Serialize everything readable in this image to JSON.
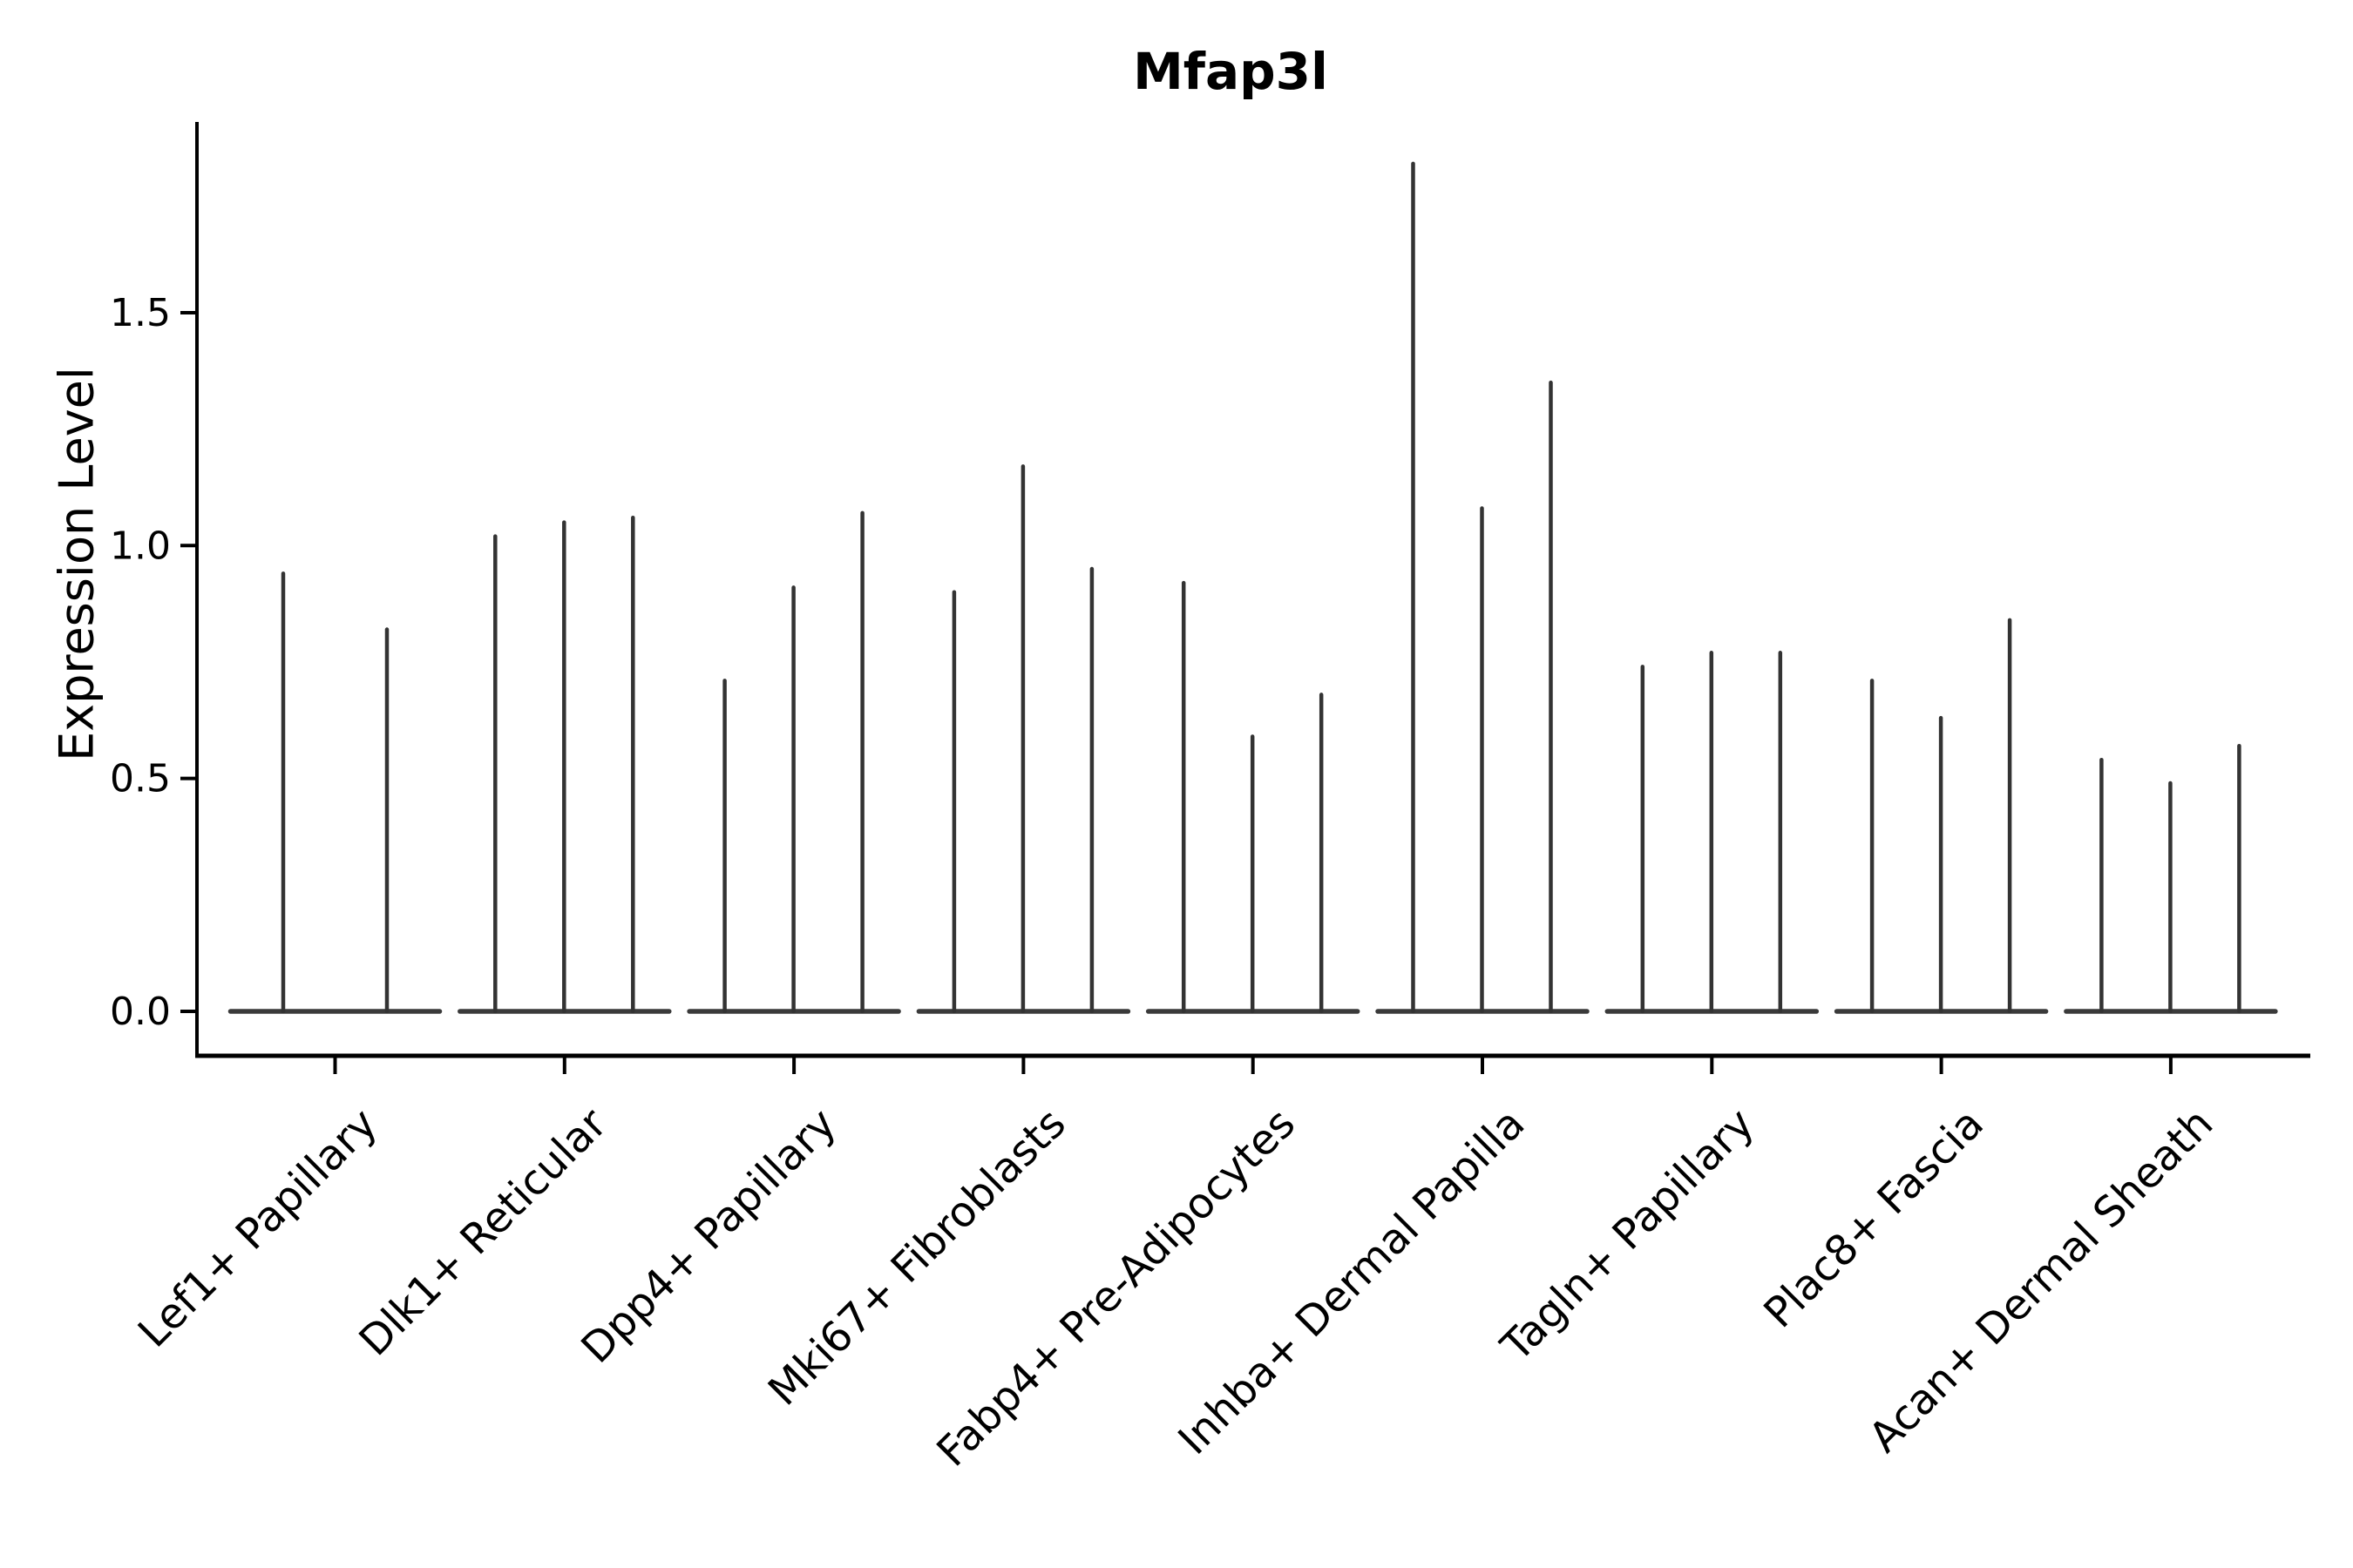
{
  "title": "Mfap3l",
  "y_axis": {
    "label": "Expression Level",
    "tick_labels": [
      "0.0",
      "0.5",
      "1.0",
      "1.5"
    ],
    "tick_values": [
      0.0,
      0.5,
      1.0,
      1.5
    ]
  },
  "chart_data": {
    "type": "violin",
    "title": "Mfap3l",
    "xlabel": "",
    "ylabel": "Expression Level",
    "ylim": [
      -0.11,
      1.91
    ],
    "yticks": [
      0.0,
      0.5,
      1.0,
      1.5
    ],
    "grid": false,
    "legend": "none",
    "description": "Thin spike-shaped violins of expression level per fibroblast cluster; each violin's mass sits at 0 with a narrow spike up to its maximum value.",
    "categories": [
      "Lef1+ Papillary",
      "Dlk1+ Reticular",
      "Dpp4+ Papillary",
      "Mki67+ Fibroblasts",
      "Fabp4+ Pre-Adipocytes",
      "Inhba+ Dermal Papilla",
      "Tagln+ Papillary",
      "Plac8+ Fascia",
      "Acan+ Dermal Sheath"
    ],
    "series": [
      {
        "label": "Lef1+ Papillary",
        "maxima": [
          0.94,
          0.82
        ]
      },
      {
        "label": "Dlk1+ Reticular",
        "maxima": [
          1.02,
          1.05,
          1.06
        ]
      },
      {
        "label": "Dpp4+ Papillary",
        "maxima": [
          0.71,
          0.91,
          1.07
        ]
      },
      {
        "label": "Mki67+ Fibroblasts",
        "maxima": [
          0.9,
          1.17,
          0.95
        ]
      },
      {
        "label": "Fabp4+ Pre-Adipocytes",
        "maxima": [
          0.92,
          0.59,
          0.68
        ]
      },
      {
        "label": "Inhba+ Dermal Papilla",
        "maxima": [
          1.82,
          1.08,
          1.35
        ]
      },
      {
        "label": "Tagln+ Papillary",
        "maxima": [
          0.74,
          0.77,
          0.77
        ]
      },
      {
        "label": "Plac8+ Fascia",
        "maxima": [
          0.71,
          0.63,
          0.84
        ]
      },
      {
        "label": "Acan+ Dermal Sheath",
        "maxima": [
          0.54,
          0.49,
          0.57
        ]
      }
    ]
  },
  "colors": {
    "spike": "#333333",
    "baseline": "#3a3a3a",
    "axis": "#000000",
    "text": "#000000",
    "background": "#ffffff"
  }
}
